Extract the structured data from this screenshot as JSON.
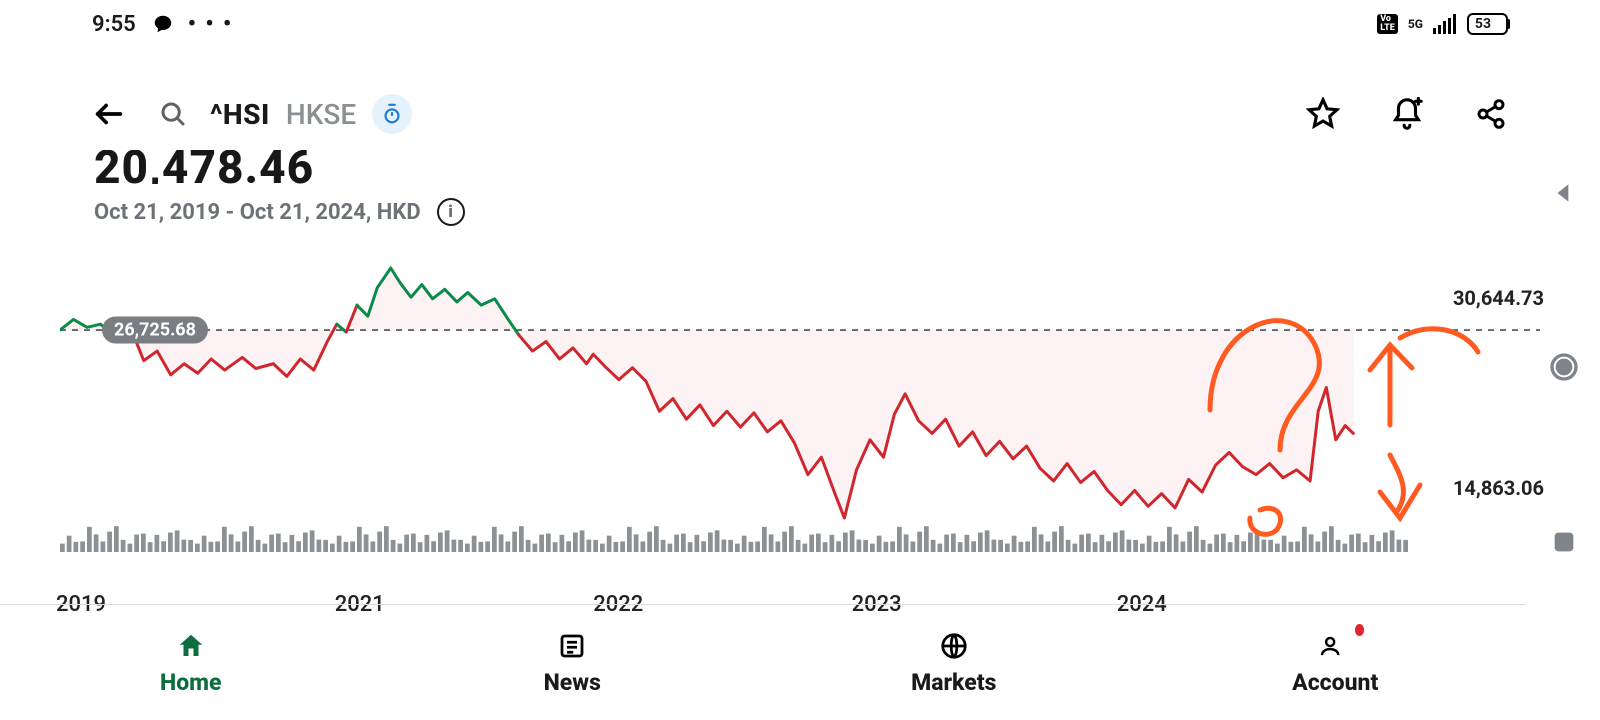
{
  "statusbar": {
    "time": "9:55",
    "battery_pct": "53",
    "network_label": "5G"
  },
  "appbar": {
    "ticker_symbol": "^HSI",
    "exchange": "HKSE"
  },
  "price_header": {
    "partial_value": "20,478.46",
    "date_range_line": "Oct 21, 2019 - Oct 21, 2024, HKD"
  },
  "chart": {
    "type": "line",
    "ylim": [
      14863.06,
      30644.73
    ],
    "y_high_label": "30,644.73",
    "y_low_label": "14,863.06",
    "baseline_value": 26725.68,
    "baseline_label": "26,725.68",
    "x_ticks": [
      {
        "label": "2019",
        "pos": 0.0
      },
      {
        "label": "2021",
        "pos": 0.205
      },
      {
        "label": "2022",
        "pos": 0.395
      },
      {
        "label": "2023",
        "pos": 0.585
      },
      {
        "label": "2024",
        "pos": 0.78
      }
    ],
    "colors": {
      "above_baseline": "#0c8a4a",
      "below_baseline": "#d0262e",
      "baseline_dash": "#4a4f54",
      "area_fill": "rgba(208,38,46,0.06)",
      "volume_bar": "#8c9196",
      "background": "#ffffff",
      "annotation": "#ff5a1f"
    },
    "line_width": 3,
    "series": [
      [
        0.0,
        26726
      ],
      [
        0.01,
        27400
      ],
      [
        0.02,
        26900
      ],
      [
        0.03,
        27100
      ],
      [
        0.045,
        26000
      ],
      [
        0.055,
        26300
      ],
      [
        0.062,
        24800
      ],
      [
        0.072,
        25400
      ],
      [
        0.082,
        23900
      ],
      [
        0.092,
        24600
      ],
      [
        0.102,
        24000
      ],
      [
        0.112,
        24900
      ],
      [
        0.122,
        24200
      ],
      [
        0.135,
        25000
      ],
      [
        0.145,
        24300
      ],
      [
        0.158,
        24600
      ],
      [
        0.168,
        23800
      ],
      [
        0.178,
        24900
      ],
      [
        0.188,
        24200
      ],
      [
        0.198,
        26000
      ],
      [
        0.205,
        27100
      ],
      [
        0.212,
        26600
      ],
      [
        0.22,
        28300
      ],
      [
        0.228,
        27600
      ],
      [
        0.235,
        29400
      ],
      [
        0.245,
        30645
      ],
      [
        0.252,
        29700
      ],
      [
        0.26,
        28800
      ],
      [
        0.268,
        29600
      ],
      [
        0.276,
        28700
      ],
      [
        0.285,
        29300
      ],
      [
        0.294,
        28500
      ],
      [
        0.302,
        29100
      ],
      [
        0.312,
        28300
      ],
      [
        0.322,
        28700
      ],
      [
        0.332,
        27400
      ],
      [
        0.34,
        26400
      ],
      [
        0.35,
        25400
      ],
      [
        0.36,
        26000
      ],
      [
        0.37,
        24900
      ],
      [
        0.38,
        25600
      ],
      [
        0.39,
        24600
      ],
      [
        0.395,
        25200
      ],
      [
        0.404,
        24400
      ],
      [
        0.414,
        23600
      ],
      [
        0.424,
        24350
      ],
      [
        0.434,
        23500
      ],
      [
        0.444,
        21600
      ],
      [
        0.454,
        22400
      ],
      [
        0.464,
        21100
      ],
      [
        0.474,
        22000
      ],
      [
        0.484,
        20700
      ],
      [
        0.494,
        21600
      ],
      [
        0.504,
        20600
      ],
      [
        0.514,
        21500
      ],
      [
        0.524,
        20300
      ],
      [
        0.534,
        21000
      ],
      [
        0.544,
        19600
      ],
      [
        0.554,
        17600
      ],
      [
        0.564,
        18700
      ],
      [
        0.574,
        16400
      ],
      [
        0.581,
        14863
      ],
      [
        0.59,
        17900
      ],
      [
        0.6,
        19800
      ],
      [
        0.61,
        18700
      ],
      [
        0.618,
        21400
      ],
      [
        0.626,
        22700
      ],
      [
        0.636,
        21000
      ],
      [
        0.646,
        20200
      ],
      [
        0.656,
        21100
      ],
      [
        0.666,
        19400
      ],
      [
        0.676,
        20300
      ],
      [
        0.686,
        18800
      ],
      [
        0.696,
        19700
      ],
      [
        0.706,
        18600
      ],
      [
        0.716,
        19400
      ],
      [
        0.726,
        18000
      ],
      [
        0.736,
        17200
      ],
      [
        0.746,
        18300
      ],
      [
        0.756,
        17100
      ],
      [
        0.766,
        17800
      ],
      [
        0.776,
        16600
      ],
      [
        0.786,
        15700
      ],
      [
        0.796,
        16600
      ],
      [
        0.806,
        15600
      ],
      [
        0.816,
        16400
      ],
      [
        0.826,
        15500
      ],
      [
        0.836,
        17300
      ],
      [
        0.846,
        16500
      ],
      [
        0.856,
        18200
      ],
      [
        0.866,
        19000
      ],
      [
        0.876,
        18100
      ],
      [
        0.886,
        17600
      ],
      [
        0.896,
        18300
      ],
      [
        0.906,
        17400
      ],
      [
        0.916,
        17900
      ],
      [
        0.926,
        17200
      ],
      [
        0.932,
        21600
      ],
      [
        0.938,
        23100
      ],
      [
        0.945,
        19800
      ],
      [
        0.952,
        20700
      ],
      [
        0.958,
        20200
      ]
    ],
    "volume_bars": 200,
    "volume_seed_heights": [
      12,
      15,
      11,
      14,
      22,
      18,
      13,
      17,
      25,
      14,
      12,
      16,
      20,
      13,
      15,
      11,
      24,
      18,
      12,
      14
    ]
  },
  "bottom_nav": {
    "items": [
      {
        "key": "home",
        "label": "Home",
        "active": true
      },
      {
        "key": "news",
        "label": "News",
        "active": false
      },
      {
        "key": "markets",
        "label": "Markets",
        "active": false
      },
      {
        "key": "account",
        "label": "Account",
        "active": false,
        "badge": true
      }
    ]
  }
}
